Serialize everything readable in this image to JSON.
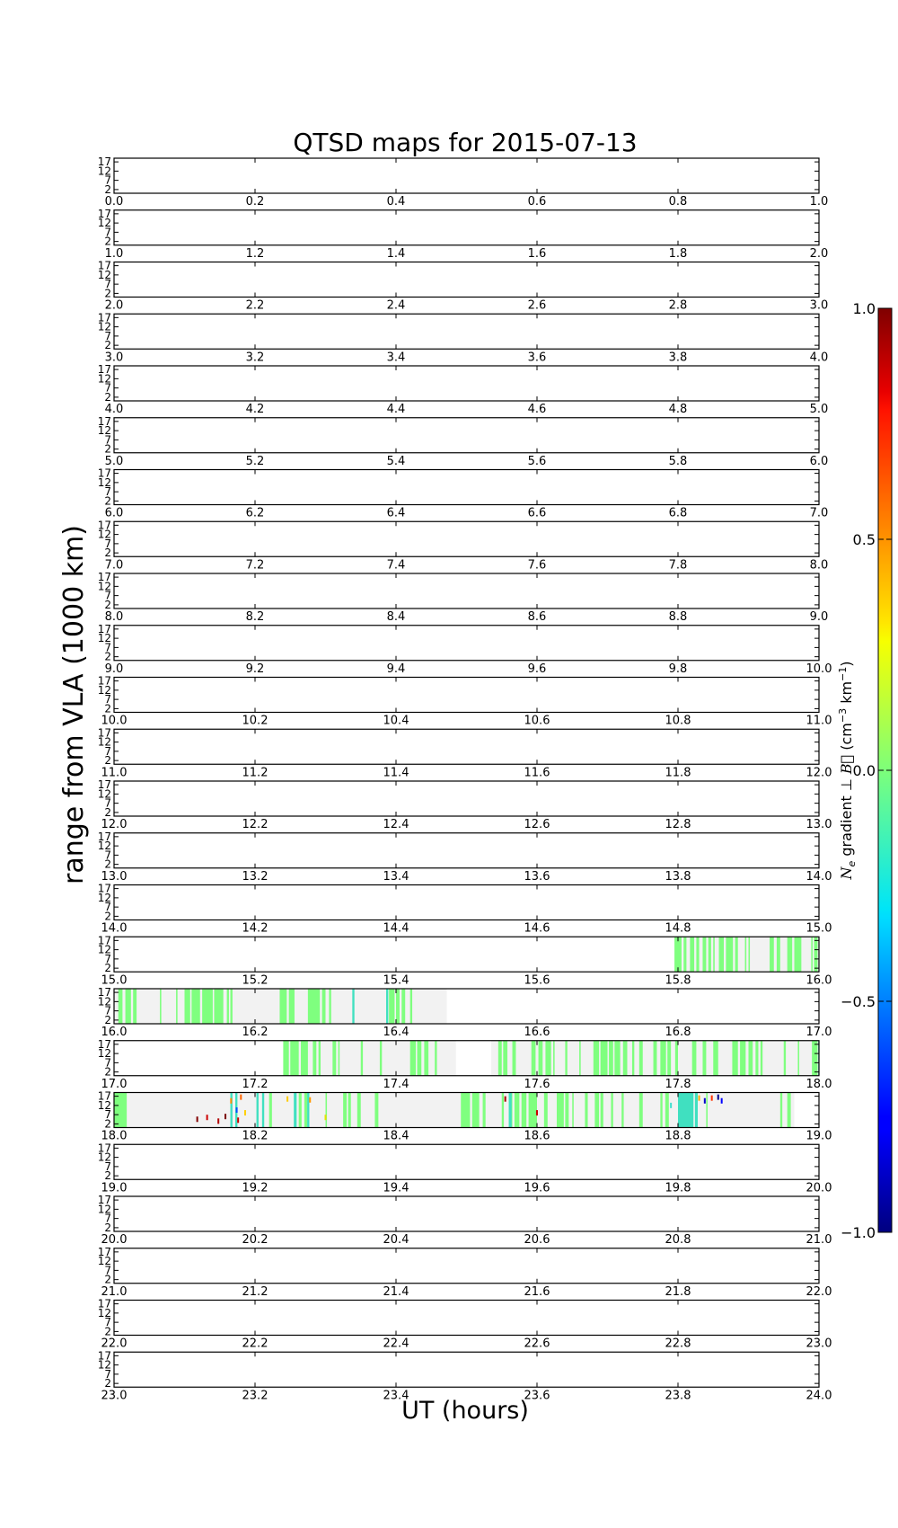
{
  "chart_data": {
    "type": "heatmap",
    "title": "QTSD maps for 2015-07-13",
    "xlabel": "UT (hours)",
    "ylabel": "range from VLA (1000 km)",
    "y_ticks": [
      2,
      7,
      12,
      17
    ],
    "y_range": [
      0,
      19
    ],
    "panels": [
      {
        "x_ticks": [
          "0.0",
          "0.2",
          "0.4",
          "0.6",
          "0.8",
          "1.0"
        ],
        "coverage": [],
        "green": [],
        "cyan": [],
        "spots": []
      },
      {
        "x_ticks": [
          "1.0",
          "1.2",
          "1.4",
          "1.6",
          "1.8",
          "2.0"
        ],
        "coverage": [],
        "green": [],
        "cyan": [],
        "spots": []
      },
      {
        "x_ticks": [
          "2.0",
          "2.2",
          "2.4",
          "2.6",
          "2.8",
          "3.0"
        ],
        "coverage": [],
        "green": [],
        "cyan": [],
        "spots": []
      },
      {
        "x_ticks": [
          "3.0",
          "3.2",
          "3.4",
          "3.6",
          "3.8",
          "4.0"
        ],
        "coverage": [],
        "green": [],
        "cyan": [],
        "spots": []
      },
      {
        "x_ticks": [
          "4.0",
          "4.2",
          "4.4",
          "4.6",
          "4.8",
          "5.0"
        ],
        "coverage": [],
        "green": [],
        "cyan": [],
        "spots": []
      },
      {
        "x_ticks": [
          "5.0",
          "5.2",
          "5.4",
          "5.6",
          "5.8",
          "6.0"
        ],
        "coverage": [],
        "green": [],
        "cyan": [],
        "spots": []
      },
      {
        "x_ticks": [
          "6.0",
          "6.2",
          "6.4",
          "6.6",
          "6.8",
          "7.0"
        ],
        "coverage": [],
        "green": [],
        "cyan": [],
        "spots": []
      },
      {
        "x_ticks": [
          "7.0",
          "7.2",
          "7.4",
          "7.6",
          "7.8",
          "8.0"
        ],
        "coverage": [],
        "green": [],
        "cyan": [],
        "spots": []
      },
      {
        "x_ticks": [
          "8.0",
          "8.2",
          "8.4",
          "8.6",
          "8.8",
          "9.0"
        ],
        "coverage": [],
        "green": [],
        "cyan": [],
        "spots": []
      },
      {
        "x_ticks": [
          "9.0",
          "9.2",
          "9.4",
          "9.6",
          "9.8",
          "10.0"
        ],
        "coverage": [],
        "green": [],
        "cyan": [],
        "spots": []
      },
      {
        "x_ticks": [
          "10.0",
          "10.2",
          "10.4",
          "10.6",
          "10.8",
          "11.0"
        ],
        "coverage": [],
        "green": [],
        "cyan": [],
        "spots": []
      },
      {
        "x_ticks": [
          "11.0",
          "11.2",
          "11.4",
          "11.6",
          "11.8",
          "12.0"
        ],
        "coverage": [],
        "green": [],
        "cyan": [],
        "spots": []
      },
      {
        "x_ticks": [
          "12.0",
          "12.2",
          "12.4",
          "12.6",
          "12.8",
          "13.0"
        ],
        "coverage": [],
        "green": [],
        "cyan": [],
        "spots": []
      },
      {
        "x_ticks": [
          "13.0",
          "13.2",
          "13.4",
          "13.6",
          "13.8",
          "14.0"
        ],
        "coverage": [],
        "green": [],
        "cyan": [],
        "spots": []
      },
      {
        "x_ticks": [
          "14.0",
          "14.2",
          "14.4",
          "14.6",
          "14.8",
          "15.0"
        ],
        "coverage": [],
        "green": [],
        "cyan": [],
        "spots": []
      },
      {
        "x_ticks": [
          "15.0",
          "15.2",
          "15.4",
          "15.6",
          "15.8",
          "16.0"
        ],
        "coverage": [
          [
            15.795,
            16.0
          ]
        ],
        "green": [
          [
            15.795,
            15.805
          ],
          [
            15.808,
            15.812
          ],
          [
            15.817,
            15.823
          ],
          [
            15.826,
            15.83
          ],
          [
            15.835,
            15.84
          ],
          [
            15.843,
            15.847
          ],
          [
            15.85,
            15.852
          ],
          [
            15.858,
            15.865
          ],
          [
            15.868,
            15.878
          ],
          [
            15.881,
            15.885
          ],
          [
            15.895,
            15.897
          ],
          [
            15.9,
            15.902
          ],
          [
            15.93,
            15.936
          ],
          [
            15.94,
            15.945
          ],
          [
            15.955,
            15.962
          ],
          [
            15.965,
            15.975
          ],
          [
            15.989,
            15.991
          ],
          [
            15.993,
            15.998
          ]
        ],
        "cyan": [],
        "spots": []
      },
      {
        "x_ticks": [
          "16.0",
          "16.2",
          "16.4",
          "16.6",
          "16.8",
          "17.0"
        ],
        "coverage": [
          [
            16.0,
            16.472
          ]
        ],
        "green": [
          [
            16.006,
            16.012
          ],
          [
            16.016,
            16.024
          ],
          [
            16.027,
            16.032
          ],
          [
            16.065,
            16.067
          ],
          [
            16.088,
            16.09
          ],
          [
            16.1,
            16.108
          ],
          [
            16.11,
            16.122
          ],
          [
            16.125,
            16.14
          ],
          [
            16.142,
            16.155
          ],
          [
            16.16,
            16.163
          ],
          [
            16.165,
            16.168
          ],
          [
            16.235,
            16.245
          ],
          [
            16.248,
            16.256
          ],
          [
            16.275,
            16.292
          ],
          [
            16.295,
            16.3
          ],
          [
            16.305,
            16.308
          ],
          [
            16.39,
            16.398
          ],
          [
            16.4,
            16.405
          ],
          [
            16.408,
            16.413
          ],
          [
            16.42,
            16.423
          ]
        ],
        "cyan": [
          [
            16.338,
            16.341
          ],
          [
            16.386,
            16.389
          ]
        ],
        "spots": []
      },
      {
        "x_ticks": [
          "17.0",
          "17.2",
          "17.4",
          "17.6",
          "17.8",
          "18.0"
        ],
        "coverage": [
          [
            17.24,
            17.485
          ],
          [
            17.535,
            18.0
          ]
        ],
        "green": [
          [
            17.24,
            17.248
          ],
          [
            17.25,
            17.262
          ],
          [
            17.265,
            17.275
          ],
          [
            17.282,
            17.287
          ],
          [
            17.29,
            17.293
          ],
          [
            17.31,
            17.315
          ],
          [
            17.318,
            17.32
          ],
          [
            17.35,
            17.353
          ],
          [
            17.377,
            17.38
          ],
          [
            17.42,
            17.428
          ],
          [
            17.43,
            17.436
          ],
          [
            17.44,
            17.446
          ],
          [
            17.455,
            17.458
          ],
          [
            17.545,
            17.55
          ],
          [
            17.552,
            17.558
          ],
          [
            17.565,
            17.57
          ],
          [
            17.592,
            17.598
          ],
          [
            17.602,
            17.608
          ],
          [
            17.612,
            17.62
          ],
          [
            17.623,
            17.625
          ],
          [
            17.64,
            17.643
          ],
          [
            17.66,
            17.662
          ],
          [
            17.68,
            17.688
          ],
          [
            17.69,
            17.7
          ],
          [
            17.702,
            17.708
          ],
          [
            17.71,
            17.718
          ],
          [
            17.722,
            17.728
          ],
          [
            17.735,
            17.738
          ],
          [
            17.745,
            17.75
          ],
          [
            17.765,
            17.77
          ],
          [
            17.775,
            17.783
          ],
          [
            17.785,
            17.79
          ],
          [
            17.796,
            17.8
          ],
          [
            17.82,
            17.826
          ],
          [
            17.835,
            17.84
          ],
          [
            17.85,
            17.857
          ],
          [
            17.877,
            17.885
          ],
          [
            17.888,
            17.896
          ],
          [
            17.9,
            17.906
          ],
          [
            17.91,
            17.914
          ],
          [
            17.917,
            17.92
          ],
          [
            17.95,
            17.953
          ],
          [
            17.97,
            17.972
          ],
          [
            17.99,
            17.998
          ]
        ],
        "cyan": [
          [
            17.999,
            18.0
          ]
        ],
        "spots": []
      },
      {
        "x_ticks": [
          "18.0",
          "18.2",
          "18.4",
          "18.6",
          "18.8",
          "19.0"
        ],
        "coverage": [
          [
            18.0,
            18.965
          ]
        ],
        "green": [
          [
            18.0,
            18.018
          ],
          [
            18.22,
            18.224
          ],
          [
            18.262,
            18.266
          ],
          [
            18.27,
            18.274
          ],
          [
            18.3,
            18.302
          ],
          [
            18.325,
            18.33
          ],
          [
            18.332,
            18.336
          ],
          [
            18.345,
            18.35
          ],
          [
            18.372,
            18.374
          ],
          [
            18.37,
            18.375
          ],
          [
            18.492,
            18.505
          ],
          [
            18.508,
            18.518
          ],
          [
            18.523,
            18.527
          ],
          [
            18.55,
            18.553
          ],
          [
            18.56,
            18.565
          ],
          [
            18.568,
            18.575
          ],
          [
            18.578,
            18.585
          ],
          [
            18.588,
            18.6
          ],
          [
            18.61,
            18.615
          ],
          [
            18.628,
            18.638
          ],
          [
            18.64,
            18.645
          ],
          [
            18.65,
            18.652
          ],
          [
            18.668,
            18.672
          ],
          [
            18.682,
            18.688
          ],
          [
            18.69,
            18.694
          ],
          [
            18.705,
            18.708
          ],
          [
            18.72,
            18.723
          ],
          [
            18.745,
            18.75
          ],
          [
            18.775,
            18.778
          ],
          [
            18.782,
            18.787
          ],
          [
            18.8,
            18.803
          ],
          [
            18.81,
            18.812
          ],
          [
            18.84,
            18.842
          ],
          [
            18.945,
            18.948
          ],
          [
            18.955,
            18.96
          ]
        ],
        "cyan": [
          [
            18.165,
            18.168
          ],
          [
            18.172,
            18.175
          ],
          [
            18.202,
            18.205
          ],
          [
            18.21,
            18.213
          ],
          [
            18.255,
            18.259
          ],
          [
            18.274,
            18.277
          ],
          [
            18.56,
            18.564
          ],
          [
            18.8,
            18.822
          ],
          [
            18.824,
            18.828
          ]
        ],
        "spots": [
          {
            "x": 18.118,
            "y": 4.5,
            "color": "#800000"
          },
          {
            "x": 18.132,
            "y": 5.5,
            "color": "#cc0000"
          },
          {
            "x": 18.148,
            "y": 3.5,
            "color": "#b00000"
          },
          {
            "x": 18.158,
            "y": 6.0,
            "color": "#7a0000"
          },
          {
            "x": 18.166,
            "y": 14.5,
            "color": "#ff8c00"
          },
          {
            "x": 18.174,
            "y": 9.5,
            "color": "#0050ff"
          },
          {
            "x": 18.176,
            "y": 4.0,
            "color": "#d00000"
          },
          {
            "x": 18.18,
            "y": 16.5,
            "color": "#ff6600"
          },
          {
            "x": 18.186,
            "y": 8.0,
            "color": "#ffd000"
          },
          {
            "x": 18.246,
            "y": 15.5,
            "color": "#ffcc00"
          },
          {
            "x": 18.278,
            "y": 15.0,
            "color": "#ff9900"
          },
          {
            "x": 18.3,
            "y": 5.5,
            "color": "#e8e000"
          },
          {
            "x": 18.555,
            "y": 15.5,
            "color": "#aa0000"
          },
          {
            "x": 18.6,
            "y": 8.0,
            "color": "#cc0000"
          },
          {
            "x": 18.83,
            "y": 16.0,
            "color": "#ffaa00"
          },
          {
            "x": 18.838,
            "y": 14.5,
            "color": "#0000cc"
          },
          {
            "x": 18.848,
            "y": 16.0,
            "color": "#ff3300"
          },
          {
            "x": 18.857,
            "y": 16.5,
            "color": "#00008b"
          },
          {
            "x": 18.862,
            "y": 14.5,
            "color": "#0000ff"
          },
          {
            "x": 18.79,
            "y": 12.0,
            "color": "#40e0d0"
          }
        ]
      },
      {
        "x_ticks": [
          "19.0",
          "19.2",
          "19.4",
          "19.6",
          "19.8",
          "20.0"
        ],
        "coverage": [],
        "green": [],
        "cyan": [],
        "spots": []
      },
      {
        "x_ticks": [
          "20.0",
          "20.2",
          "20.4",
          "20.6",
          "20.8",
          "21.0"
        ],
        "coverage": [],
        "green": [],
        "cyan": [],
        "spots": []
      },
      {
        "x_ticks": [
          "21.0",
          "21.2",
          "21.4",
          "21.6",
          "21.8",
          "22.0"
        ],
        "coverage": [],
        "green": [],
        "cyan": [],
        "spots": []
      },
      {
        "x_ticks": [
          "22.0",
          "22.2",
          "22.4",
          "22.6",
          "22.8",
          "23.0"
        ],
        "coverage": [],
        "green": [],
        "cyan": [],
        "spots": []
      },
      {
        "x_ticks": [
          "23.0",
          "23.2",
          "23.4",
          "23.6",
          "23.8",
          "24.0"
        ],
        "coverage": [],
        "green": [],
        "cyan": [],
        "spots": []
      }
    ],
    "colorbar": {
      "label": "N_e gradient ⊥ B (cm⁻³ km⁻¹)",
      "ticks": [
        "1.0",
        "0.5",
        "0.0",
        "−0.5",
        "−1.0"
      ],
      "vmin": -1.0,
      "vmax": 1.0,
      "colormap": "jet"
    },
    "colors": {
      "coverage": "#f2f2f2",
      "near_zero": "#7fff7f",
      "slight_negative": "#40e0c0"
    }
  }
}
